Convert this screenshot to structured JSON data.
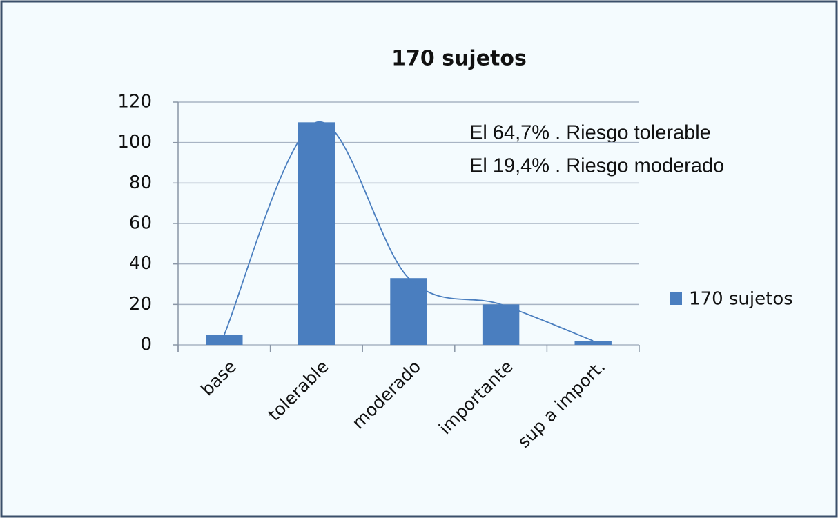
{
  "chart_data": {
    "type": "bar",
    "title": "170 sujetos",
    "categories": [
      "base",
      "tolerable",
      "moderado",
      "importante",
      "sup a import."
    ],
    "series": [
      {
        "name": "170 sujetos",
        "color": "#4a7ebf",
        "values": [
          5,
          110,
          33,
          20,
          2
        ]
      }
    ],
    "trendline": true,
    "trendline_color": "#4a7ebf",
    "annotations": [
      "El 64,7% . Riesgo tolerable",
      "El 19,4% . Riesgo moderado"
    ],
    "ylim": [
      0,
      120
    ],
    "yticks": [
      0,
      20,
      40,
      60,
      80,
      100,
      120
    ],
    "grid": true,
    "legend": "right"
  }
}
